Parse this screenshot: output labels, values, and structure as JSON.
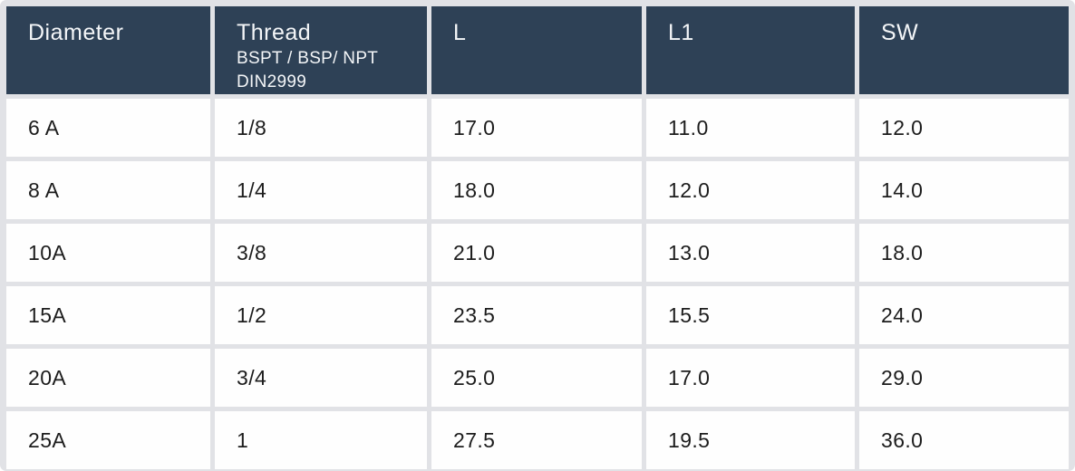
{
  "table": {
    "header": {
      "cells": [
        {
          "label": "Diameter"
        },
        {
          "label": "Thread",
          "sub1": "BSPT / BSP/ NPT",
          "sub2": "DIN2999"
        },
        {
          "label": "L"
        },
        {
          "label": "L1"
        },
        {
          "label": "SW"
        }
      ]
    },
    "rows": [
      {
        "diameter": "6 A",
        "thread": "1/8",
        "l": "17.0",
        "l1": "11.0",
        "sw": "12.0"
      },
      {
        "diameter": "8 A",
        "thread": "1/4",
        "l": "18.0",
        "l1": "12.0",
        "sw": "14.0"
      },
      {
        "diameter": "10A",
        "thread": "3/8",
        "l": "21.0",
        "l1": "13.0",
        "sw": "18.0"
      },
      {
        "diameter": "15A",
        "thread": "1/2",
        "l": "23.5",
        "l1": "15.5",
        "sw": "24.0"
      },
      {
        "diameter": "20A",
        "thread": "3/4",
        "l": "25.0",
        "l1": "17.0",
        "sw": "29.0"
      },
      {
        "diameter": "25A",
        "thread": "1",
        "l": "27.5",
        "l1": "19.5",
        "sw": "36.0"
      }
    ]
  },
  "colors": {
    "header_bg": "#2e4156",
    "header_text": "#f4f6f8",
    "cell_bg": "#fefefe",
    "cell_text": "#1c1c1c",
    "gutter": "#e1e2e6"
  }
}
